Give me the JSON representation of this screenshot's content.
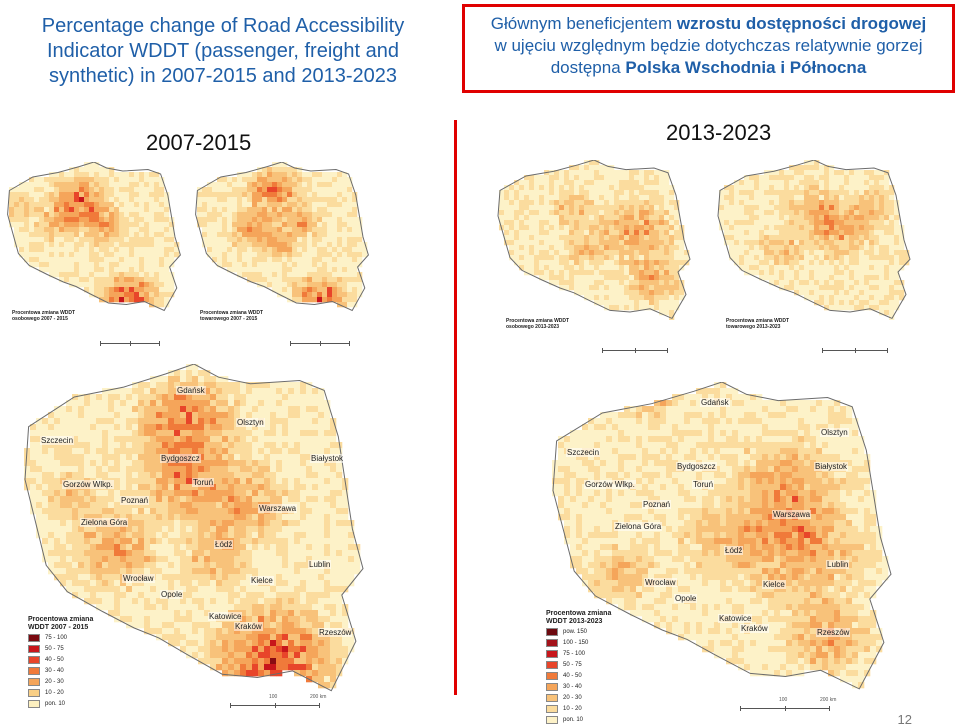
{
  "title_lines": [
    "Percentage change of Road Accessibility",
    "Indicator WDDT (passenger, freight and",
    "synthetic) in 2007-2015 and 2013-2023"
  ],
  "callout": {
    "line1_plain": "Głównym beneficjentem ",
    "line1_bold": "wzrostu dostępności drogowej",
    "line2": "w ujęciu względnym będzie dotychczas relatywnie gorzej",
    "line3_plain": "dostępna ",
    "line3_bold": "Polska Wschodnia i Północna",
    "border_color": "#e00000"
  },
  "periods": {
    "left": "2007-2015",
    "right": "2013-2023"
  },
  "small_maps": [
    {
      "id": "pass-2007",
      "label_lines": [
        "Procentowa zmiana WDDT",
        "osobowego 2007 - 2015"
      ]
    },
    {
      "id": "freight-2007",
      "label_lines": [
        "Procentowa zmiana WDDT",
        "towarowego 2007 - 2015"
      ]
    },
    {
      "id": "pass-2013",
      "label_lines": [
        "Procentowa zmiana WDDT",
        "osobowego 2013-2023"
      ]
    },
    {
      "id": "freight-2013",
      "label_lines": [
        "Procentowa zmiana WDDT",
        "towarowego 2013-2023"
      ]
    }
  ],
  "scale": {
    "mid": "100",
    "end": "200 km"
  },
  "large_left": {
    "legend_title": [
      "Procentowa zmiana",
      "WDDT 2007 - 2015"
    ],
    "legend_rows": [
      {
        "label": "75 - 100",
        "color": "#7a0a10"
      },
      {
        "label": "50 - 75",
        "color": "#c8161b"
      },
      {
        "label": "40 - 50",
        "color": "#e8452a"
      },
      {
        "label": "30 - 40",
        "color": "#f07a3a"
      },
      {
        "label": "20 - 30",
        "color": "#f5a55a"
      },
      {
        "label": "10 - 20",
        "color": "#f9cf86"
      },
      {
        "label": "pon. 10",
        "color": "#fdf0c0"
      }
    ],
    "cities": [
      "Gdańsk",
      "Olsztyn",
      "Szczecin",
      "Bydgoszcz",
      "Białystok",
      "Gorzów Wlkp.",
      "Toruń",
      "Poznań",
      "Warszawa",
      "Zielona Góra",
      "Łódź",
      "Lublin",
      "Wrocław",
      "Kielce",
      "Opole",
      "Katowice",
      "Kraków",
      "Rzeszów"
    ]
  },
  "large_right": {
    "legend_title": [
      "Procentowa zmiana",
      "WDDT 2013-2023"
    ],
    "legend_rows": [
      {
        "label": "pow. 150",
        "color": "#6d0a10"
      },
      {
        "label": "100 - 150",
        "color": "#a3121a"
      },
      {
        "label": "75 - 100",
        "color": "#c8161b"
      },
      {
        "label": "50 - 75",
        "color": "#e8452a"
      },
      {
        "label": "40 - 50",
        "color": "#f07a3a"
      },
      {
        "label": "30 - 40",
        "color": "#f5a55a"
      },
      {
        "label": "20 - 30",
        "color": "#f8c27a"
      },
      {
        "label": "10 - 20",
        "color": "#fbdc9e"
      },
      {
        "label": "pon. 10",
        "color": "#fdf2c8"
      }
    ],
    "cities": [
      "Gdańsk",
      "Olsztyn",
      "Szczecin",
      "Bydgoszcz",
      "Białystok",
      "Gorzów Wlkp.",
      "Toruń",
      "Poznań",
      "Warszawa",
      "Zielona Góra",
      "Łódź",
      "Lublin",
      "Wrocław",
      "Kielce",
      "Opole",
      "Katowice",
      "Kraków",
      "Rzeszów"
    ]
  },
  "page_number": "12"
}
